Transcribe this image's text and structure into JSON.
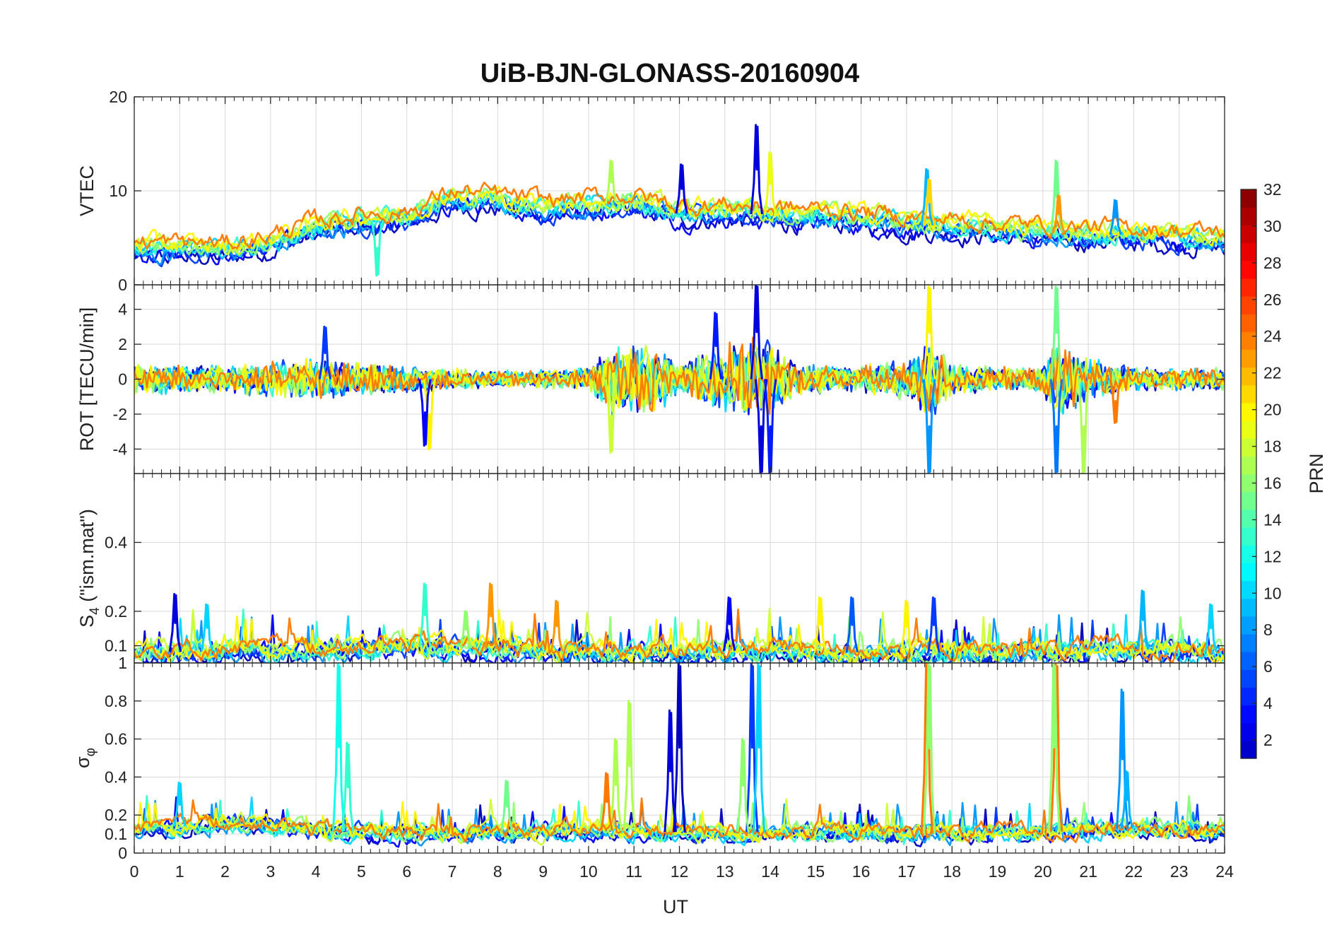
{
  "chart_data": {
    "type": "line",
    "title": "UiB-BJN-GLONASS-20160904",
    "xlabel": "UT",
    "xlim": [
      0,
      24
    ],
    "x_ticks": [
      "0",
      "1",
      "2",
      "3",
      "4",
      "5",
      "6",
      "7",
      "8",
      "9",
      "10",
      "11",
      "12",
      "13",
      "14",
      "15",
      "16",
      "17",
      "18",
      "19",
      "20",
      "21",
      "22",
      "23",
      "24"
    ],
    "colormap": "jet",
    "colorbar": {
      "label": "PRN",
      "range": [
        1,
        32
      ],
      "ticks": [
        "2",
        "4",
        "6",
        "8",
        "10",
        "12",
        "14",
        "16",
        "18",
        "20",
        "22",
        "24",
        "26",
        "28",
        "30",
        "32"
      ]
    },
    "panels": [
      {
        "id": "vtec",
        "ylabel": "VTEC",
        "ylim": [
          0,
          20
        ],
        "y_ticks": [
          {
            "v": 0,
            "t": "0"
          },
          {
            "v": 10,
            "t": "10"
          },
          {
            "v": 20,
            "t": "20"
          }
        ],
        "baseline": [
          [
            0,
            3.8
          ],
          [
            2,
            3.6
          ],
          [
            3,
            4.5
          ],
          [
            4,
            6.0
          ],
          [
            5,
            6.8
          ],
          [
            6,
            7.0
          ],
          [
            7,
            9.2
          ],
          [
            8,
            8.8
          ],
          [
            9,
            8.2
          ],
          [
            10,
            8.5
          ],
          [
            11,
            8.8
          ],
          [
            12,
            7.6
          ],
          [
            13,
            7.8
          ],
          [
            14,
            7.4
          ],
          [
            15,
            7.3
          ],
          [
            16,
            7.0
          ],
          [
            17,
            6.5
          ],
          [
            18,
            6.2
          ],
          [
            19,
            5.8
          ],
          [
            20,
            5.6
          ],
          [
            21,
            5.4
          ],
          [
            22,
            5.3
          ],
          [
            23,
            5.0
          ],
          [
            24,
            4.8
          ]
        ],
        "noise": 0.7,
        "events": [
          {
            "t": 13.7,
            "v": 17,
            "prn": 2
          },
          {
            "t": 12.05,
            "v": 12.8,
            "prn": 2
          },
          {
            "t": 14.0,
            "v": 14.1,
            "prn": 19
          },
          {
            "t": 10.5,
            "v": 13.2,
            "prn": 17
          },
          {
            "t": 20.3,
            "v": 13.2,
            "prn": 15
          },
          {
            "t": 17.45,
            "v": 12.3,
            "prn": 9
          },
          {
            "t": 17.5,
            "v": 11.2,
            "prn": 21
          },
          {
            "t": 5.35,
            "v": 1.0,
            "prn": 13
          },
          {
            "t": 20.35,
            "v": 9.5,
            "prn": 23
          },
          {
            "t": 21.6,
            "v": 9.0,
            "prn": 8
          }
        ]
      },
      {
        "id": "rot",
        "ylabel": "ROT [TECU/min]",
        "ylim": [
          -5.4,
          5.4
        ],
        "y_ticks": [
          {
            "v": -4,
            "t": "-4"
          },
          {
            "v": -2,
            "t": "-2"
          },
          {
            "v": 0,
            "t": "0"
          },
          {
            "v": 2,
            "t": "2"
          },
          {
            "v": 4,
            "t": "4"
          }
        ],
        "noise_profile": [
          [
            0,
            0.7
          ],
          [
            2,
            0.6
          ],
          [
            4,
            0.9
          ],
          [
            6,
            0.6
          ],
          [
            8,
            0.35
          ],
          [
            10,
            0.5
          ],
          [
            10.5,
            1.5
          ],
          [
            11.5,
            1.5
          ],
          [
            12,
            0.7
          ],
          [
            13,
            1.6
          ],
          [
            14,
            1.8
          ],
          [
            14.5,
            0.7
          ],
          [
            16,
            0.6
          ],
          [
            17,
            0.9
          ],
          [
            17.5,
            1.8
          ],
          [
            18,
            0.7
          ],
          [
            19,
            0.5
          ],
          [
            20,
            0.6
          ],
          [
            20.3,
            1.8
          ],
          [
            21,
            1.0
          ],
          [
            22,
            0.5
          ],
          [
            24,
            0.5
          ]
        ],
        "events": [
          {
            "t": 13.7,
            "v": 5.4,
            "prn": 2
          },
          {
            "t": 13.8,
            "v": -5.4,
            "prn": 2
          },
          {
            "t": 14.0,
            "v": -5.4,
            "prn": 4
          },
          {
            "t": 17.5,
            "v": 5.3,
            "prn": 20
          },
          {
            "t": 17.5,
            "v": -5.4,
            "prn": 8
          },
          {
            "t": 20.3,
            "v": 5.3,
            "prn": 15
          },
          {
            "t": 20.3,
            "v": -5.4,
            "prn": 7
          },
          {
            "t": 20.9,
            "v": -5.4,
            "prn": 17
          },
          {
            "t": 6.5,
            "v": -4.0,
            "prn": 20
          },
          {
            "t": 6.4,
            "v": -3.8,
            "prn": 3
          },
          {
            "t": 4.2,
            "v": 3.0,
            "prn": 5
          },
          {
            "t": 10.5,
            "v": -4.2,
            "prn": 18
          },
          {
            "t": 12.8,
            "v": 3.8,
            "prn": 4
          },
          {
            "t": 21.6,
            "v": -2.5,
            "prn": 24
          }
        ]
      },
      {
        "id": "s4",
        "ylabel": "S",
        "ylabel_sub": "4",
        "ylabel_suffix": " (\"ism.mat\")",
        "ylim": [
          0.05,
          0.6
        ],
        "y_ticks": [
          {
            "v": 0.1,
            "t": "0.1"
          },
          {
            "v": 0.2,
            "t": "0.2"
          },
          {
            "v": 0.4,
            "t": "0.4"
          }
        ],
        "baseline": [
          [
            0,
            0.08
          ],
          [
            4,
            0.09
          ],
          [
            6,
            0.1
          ],
          [
            8,
            0.09
          ],
          [
            10,
            0.08
          ],
          [
            12,
            0.08
          ],
          [
            14,
            0.09
          ],
          [
            16,
            0.08
          ],
          [
            18,
            0.08
          ],
          [
            20,
            0.08
          ],
          [
            22,
            0.09
          ],
          [
            24,
            0.08
          ]
        ],
        "noise": 0.02,
        "events": [
          {
            "t": 0.9,
            "v": 0.25,
            "prn": 2
          },
          {
            "t": 1.6,
            "v": 0.22,
            "prn": 10
          },
          {
            "t": 6.4,
            "v": 0.28,
            "prn": 13
          },
          {
            "t": 7.85,
            "v": 0.28,
            "prn": 23
          },
          {
            "t": 9.3,
            "v": 0.23,
            "prn": 23
          },
          {
            "t": 13.1,
            "v": 0.24,
            "prn": 3
          },
          {
            "t": 15.1,
            "v": 0.24,
            "prn": 20
          },
          {
            "t": 15.8,
            "v": 0.24,
            "prn": 6
          },
          {
            "t": 17.0,
            "v": 0.23,
            "prn": 20
          },
          {
            "t": 17.6,
            "v": 0.24,
            "prn": 5
          },
          {
            "t": 22.2,
            "v": 0.26,
            "prn": 9
          },
          {
            "t": 23.7,
            "v": 0.22,
            "prn": 10
          },
          {
            "t": 7.3,
            "v": 0.2,
            "prn": 16
          }
        ]
      },
      {
        "id": "sigphi",
        "ylabel": "σ",
        "ylabel_sub": "φ",
        "ylim": [
          0,
          1
        ],
        "y_ticks": [
          {
            "v": 0,
            "t": "0"
          },
          {
            "v": 0.1,
            "t": "0.1"
          },
          {
            "v": 0.2,
            "t": "0.2"
          },
          {
            "v": 0.4,
            "t": "0.4"
          },
          {
            "v": 0.6,
            "t": "0.6"
          },
          {
            "v": 0.8,
            "t": "0.8"
          },
          {
            "v": 1,
            "t": "1"
          }
        ],
        "baseline": [
          [
            0,
            0.12
          ],
          [
            2,
            0.16
          ],
          [
            3,
            0.15
          ],
          [
            4,
            0.12
          ],
          [
            6,
            0.1
          ],
          [
            8,
            0.11
          ],
          [
            10,
            0.12
          ],
          [
            12,
            0.11
          ],
          [
            14,
            0.11
          ],
          [
            16,
            0.11
          ],
          [
            18,
            0.1
          ],
          [
            20,
            0.11
          ],
          [
            22,
            0.13
          ],
          [
            24,
            0.12
          ]
        ],
        "noise": 0.03,
        "events": [
          {
            "t": 4.5,
            "v": 1.0,
            "prn": 12
          },
          {
            "t": 4.7,
            "v": 0.58,
            "prn": 13
          },
          {
            "t": 10.9,
            "v": 0.8,
            "prn": 17
          },
          {
            "t": 10.6,
            "v": 0.6,
            "prn": 17
          },
          {
            "t": 10.4,
            "v": 0.42,
            "prn": 24
          },
          {
            "t": 12.0,
            "v": 1.0,
            "prn": 1
          },
          {
            "t": 11.8,
            "v": 0.75,
            "prn": 2
          },
          {
            "t": 13.6,
            "v": 1.0,
            "prn": 5
          },
          {
            "t": 13.75,
            "v": 1.0,
            "prn": 10
          },
          {
            "t": 13.4,
            "v": 0.6,
            "prn": 16
          },
          {
            "t": 17.45,
            "v": 1.0,
            "prn": 24
          },
          {
            "t": 17.5,
            "v": 1.0,
            "prn": 16
          },
          {
            "t": 20.3,
            "v": 1.0,
            "prn": 24
          },
          {
            "t": 20.25,
            "v": 1.0,
            "prn": 16
          },
          {
            "t": 21.75,
            "v": 0.86,
            "prn": 8
          },
          {
            "t": 21.85,
            "v": 0.43,
            "prn": 9
          },
          {
            "t": 8.2,
            "v": 0.38,
            "prn": 15
          },
          {
            "t": 1.0,
            "v": 0.37,
            "prn": 10
          }
        ]
      }
    ],
    "series": [
      {
        "name": "PRN 1",
        "prn": 1
      },
      {
        "name": "PRN 3",
        "prn": 3
      },
      {
        "name": "PRN 5",
        "prn": 5
      },
      {
        "name": "PRN 8",
        "prn": 8
      },
      {
        "name": "PRN 10",
        "prn": 10
      },
      {
        "name": "PRN 13",
        "prn": 13
      },
      {
        "name": "PRN 16",
        "prn": 16
      },
      {
        "name": "PRN 18",
        "prn": 18
      },
      {
        "name": "PRN 20",
        "prn": 20
      },
      {
        "name": "PRN 24",
        "prn": 24
      }
    ]
  }
}
